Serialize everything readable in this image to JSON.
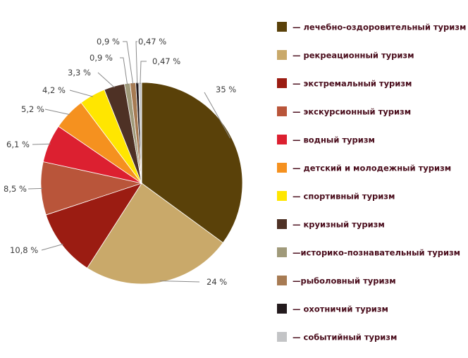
{
  "chart_data": {
    "type": "pie",
    "start_angle_deg": 0,
    "direction": "clockwise",
    "slices": [
      {
        "label": "— лечебно-оздоровительный туризм",
        "value": 35,
        "value_label": "35 %",
        "color": "#5a4109"
      },
      {
        "label": "— рекреационный туризм",
        "value": 24,
        "value_label": "24 %",
        "color": "#c9a96a"
      },
      {
        "label": "— экстремальный туризм",
        "value": 10.8,
        "value_label": "10,8 %",
        "color": "#9b1c12"
      },
      {
        "label": "— экскурсионный туризм",
        "value": 8.5,
        "value_label": "8,5 %",
        "color": "#b9553a"
      },
      {
        "label": "— водный туризм",
        "value": 6.1,
        "value_label": "6,1 %",
        "color": "#dc2030"
      },
      {
        "label": "— детский и молодежный туризм",
        "value": 5.2,
        "value_label": "5,2 %",
        "color": "#f5911f"
      },
      {
        "label": "— спортивный туризм",
        "value": 4.2,
        "value_label": "4,2 %",
        "color": "#ffe600"
      },
      {
        "label": "— круизный туризм",
        "value": 3.3,
        "value_label": "3,3 %",
        "color": "#4e3125"
      },
      {
        "label": "—историко-познавательный туризм",
        "value": 0.9,
        "value_label": "0,9 %",
        "color": "#a09a7a"
      },
      {
        "label": "—рыболовный туризм",
        "value": 0.9,
        "value_label": "0,9 %",
        "color": "#a77b53"
      },
      {
        "label": "— охотничий туризм",
        "value": 0.47,
        "value_label": "0,47 %",
        "color": "#231a1d"
      },
      {
        "label": "— событийный туризм",
        "value": 0.47,
        "value_label": "0,47 %",
        "color": "#c3c4c6"
      }
    ],
    "legend_position": "right"
  }
}
